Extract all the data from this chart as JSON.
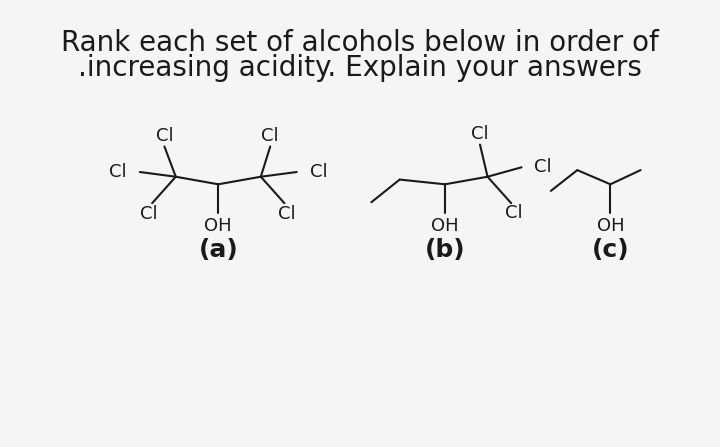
{
  "title_line1": "Rank each set of alcohols below in order of",
  "title_line2": ".increasing acidity. Explain your answers",
  "title_fontsize": 20,
  "title_color": "#1a1a1a",
  "background_color": "#f5f5f5",
  "label_a": "(a)",
  "label_b": "(b)",
  "label_c": "(c)",
  "label_fontsize": 18,
  "label_fontweight": "bold",
  "mol_text_fontsize": 13,
  "mol_color": "#1a1a1a",
  "line_width": 1.5
}
